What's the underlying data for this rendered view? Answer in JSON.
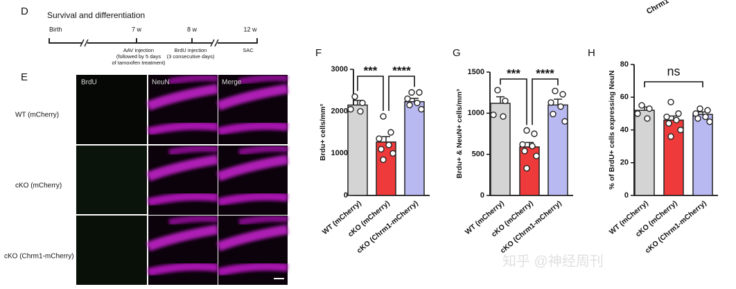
{
  "panel_d": {
    "letter": "D",
    "title": "Survival and differentiation",
    "timepoints": [
      "Birth",
      "7 w",
      "8 w",
      "12 w"
    ],
    "events": [
      [
        "AAV injection",
        "(followed by 5 days",
        "of tamoxifen treatment)"
      ],
      [
        "BrdU injection",
        "(3 consecutive days)"
      ],
      [
        "SAC"
      ]
    ]
  },
  "panel_e": {
    "letter": "E",
    "columns": [
      "BrdU",
      "NeuN",
      "Merge"
    ],
    "rows": [
      "WT (mCherry)",
      "cKO (mCherry)",
      "cKO (Chrm1-mCherry)"
    ]
  },
  "corner_text": "Chrm1",
  "watermark": "知乎 @神经周刊",
  "chart_data": [
    {
      "type": "bar",
      "letter": "F",
      "ylabel": "Brdu+ cells/mm³",
      "categories": [
        "WT (mCherry)",
        "cKO (mCherry)",
        "cKO (Chrm1-mCherry)"
      ],
      "colors": [
        "#d4d4d4",
        "#ee3a3a",
        "#b9b9f2"
      ],
      "values": [
        2150,
        1270,
        2230
      ],
      "errors": [
        110,
        130,
        80
      ],
      "points": [
        [
          2350,
          2200,
          2050,
          2000
        ],
        [
          1880,
          1500,
          1350,
          1200,
          1100,
          1000,
          850
        ],
        [
          2450,
          2450,
          2300,
          2200,
          2150,
          2050
        ]
      ],
      "significance": [
        "***",
        "****"
      ],
      "ylim": [
        0,
        3000
      ],
      "yticks": [
        0,
        1000,
        2000,
        3000
      ]
    },
    {
      "type": "bar",
      "letter": "G",
      "ylabel": "Brdu+ & NeuN+ cells/mm³",
      "categories": [
        "WT (mCherry)",
        "cKO (mCherry)",
        "cKO (Chrm1-mCherry)"
      ],
      "colors": [
        "#d4d4d4",
        "#ee3a3a",
        "#b9b9f2"
      ],
      "values": [
        1120,
        590,
        1100
      ],
      "errors": [
        80,
        55,
        70
      ],
      "points": [
        [
          1280,
          1150,
          980,
          960
        ],
        [
          790,
          750,
          620,
          600,
          540,
          480,
          330
        ],
        [
          1270,
          1230,
          1130,
          1080,
          990,
          900
        ]
      ],
      "significance": [
        "***",
        "****"
      ],
      "ylim": [
        0,
        1500
      ],
      "yticks": [
        0,
        500,
        1000,
        1500
      ]
    },
    {
      "type": "bar",
      "letter": "H",
      "ylabel": "% of BrdU+ cells expressing NeuN",
      "categories": [
        "WT (mCherry)",
        "cKO (mCherry)",
        "cKO (Chrm1-mCherry)"
      ],
      "colors": [
        "#d4d4d4",
        "#ee3a3a",
        "#b9b9f2"
      ],
      "values": [
        52,
        46,
        49.5
      ],
      "errors": [
        2,
        2.5,
        1.5
      ],
      "points": [
        [
          55,
          53,
          50,
          47
        ],
        [
          57,
          50,
          48,
          46,
          44,
          40,
          36
        ],
        [
          53,
          52,
          50,
          48,
          47,
          45
        ]
      ],
      "significance": [
        "ns"
      ],
      "ylim": [
        0,
        80
      ],
      "yticks": [
        0,
        20,
        40,
        60,
        80
      ]
    }
  ]
}
